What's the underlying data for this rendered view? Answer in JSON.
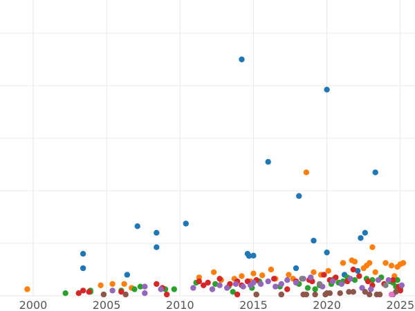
{
  "chart_data": {
    "type": "scatter",
    "title": "",
    "xlabel": "",
    "ylabel": "",
    "xlim": [
      1996.8,
      2026.0
    ],
    "ylim": [
      0,
      100
    ],
    "x_ticks": [
      2000,
      2005,
      2010,
      2015,
      2020,
      2025
    ],
    "x_tick_labels": [
      "2000",
      "2005",
      "2010",
      "2015",
      "2020",
      "2025"
    ],
    "y_gridlines": [
      0,
      20,
      40,
      60,
      80,
      100
    ],
    "grid": true,
    "legend": "none",
    "series": [
      {
        "color": "#1f77b4",
        "points": [
          [
            2003.4,
            16.0
          ],
          [
            2003.4,
            10.5
          ],
          [
            2006.4,
            8.0
          ],
          [
            2007.1,
            26.5
          ],
          [
            2008.4,
            24.0
          ],
          [
            2008.4,
            18.5
          ],
          [
            2010.4,
            27.5
          ],
          [
            2014.2,
            90.0
          ],
          [
            2014.6,
            16.0
          ],
          [
            2014.7,
            15.2
          ],
          [
            2015.0,
            15.3
          ],
          [
            2016.0,
            51.0
          ],
          [
            2017.9,
            10.5
          ],
          [
            2018.1,
            38.0
          ],
          [
            2019.1,
            21.0
          ],
          [
            2020.0,
            78.5
          ],
          [
            2020.0,
            16.5
          ],
          [
            2022.3,
            22.0
          ],
          [
            2022.6,
            24.0
          ],
          [
            2023.3,
            47.0
          ],
          [
            2022.1,
            9.5
          ],
          [
            2021.2,
            8.0
          ]
        ]
      },
      {
        "color": "#ff7f0e",
        "points": [
          [
            1999.6,
            2.5
          ],
          [
            2004.6,
            4.0
          ],
          [
            2005.4,
            4.5
          ],
          [
            2006.2,
            4.5
          ],
          [
            2006.7,
            3.0
          ],
          [
            2011.3,
            7.0
          ],
          [
            2012.3,
            9.0
          ],
          [
            2012.8,
            6.0
          ],
          [
            2013.7,
            6.5
          ],
          [
            2014.2,
            7.5
          ],
          [
            2014.8,
            5.5
          ],
          [
            2015.0,
            8.5
          ],
          [
            2015.6,
            7.8
          ],
          [
            2016.2,
            10.0
          ],
          [
            2016.5,
            6.5
          ],
          [
            2017.4,
            8.0
          ],
          [
            2017.7,
            6.5
          ],
          [
            2018.6,
            47.0
          ],
          [
            2018.9,
            7.0
          ],
          [
            2019.1,
            9.0
          ],
          [
            2019.6,
            8.0
          ],
          [
            2020.1,
            9.5
          ],
          [
            2020.5,
            6.5
          ],
          [
            2021.1,
            12.5
          ],
          [
            2021.7,
            13.5
          ],
          [
            2021.9,
            13.0
          ],
          [
            2022.5,
            10.5
          ],
          [
            2022.7,
            11.5
          ],
          [
            2022.9,
            12.5
          ],
          [
            2023.1,
            18.5
          ],
          [
            2023.3,
            9.0
          ],
          [
            2024.0,
            12.5
          ],
          [
            2024.4,
            11.5
          ],
          [
            2024.8,
            11.0
          ],
          [
            2025.0,
            12.0
          ],
          [
            2025.2,
            12.5
          ],
          [
            2023.7,
            7.0
          ],
          [
            2024.6,
            7.5
          ],
          [
            2015.2,
            0.5
          ]
        ]
      },
      {
        "color": "#2ca02c",
        "points": [
          [
            2002.2,
            1.0
          ],
          [
            2003.9,
            1.5
          ],
          [
            2003.9,
            2.0
          ],
          [
            2006.0,
            2.0
          ],
          [
            2006.9,
            2.5
          ],
          [
            2007.3,
            3.5
          ],
          [
            2009.0,
            2.5
          ],
          [
            2009.6,
            2.5
          ],
          [
            2011.1,
            5.0
          ],
          [
            2012.4,
            4.5
          ],
          [
            2013.3,
            3.5
          ],
          [
            2013.6,
            1.5
          ],
          [
            2014.9,
            3.0
          ],
          [
            2015.4,
            5.5
          ],
          [
            2016.8,
            3.5
          ],
          [
            2018.1,
            4.5
          ],
          [
            2018.7,
            3.0
          ],
          [
            2019.2,
            2.5
          ],
          [
            2019.5,
            4.0
          ],
          [
            2020.3,
            4.5
          ],
          [
            2020.4,
            6.0
          ],
          [
            2020.8,
            5.0
          ],
          [
            2021.1,
            5.5
          ],
          [
            2021.4,
            7.0
          ],
          [
            2021.9,
            6.0
          ],
          [
            2022.7,
            6.5
          ],
          [
            2023.1,
            6.0
          ],
          [
            2023.7,
            7.0
          ],
          [
            2024.3,
            5.5
          ],
          [
            2024.7,
            3.5
          ],
          [
            2025.0,
            2.5
          ],
          [
            2024.8,
            6.0
          ],
          [
            2024.5,
            5.0
          ]
        ]
      },
      {
        "color": "#d62728",
        "points": [
          [
            2003.1,
            1.0
          ],
          [
            2003.4,
            2.0
          ],
          [
            2003.8,
            1.5
          ],
          [
            2006.0,
            1.5
          ],
          [
            2008.4,
            4.5
          ],
          [
            2008.8,
            3.0
          ],
          [
            2009.1,
            0.5
          ],
          [
            2011.3,
            5.5
          ],
          [
            2011.6,
            4.0
          ],
          [
            2011.9,
            5.0
          ],
          [
            2012.7,
            6.5
          ],
          [
            2013.4,
            4.5
          ],
          [
            2013.9,
            5.5
          ],
          [
            2014.2,
            4.0
          ],
          [
            2014.6,
            5.5
          ],
          [
            2015.2,
            6.0
          ],
          [
            2016.4,
            6.5
          ],
          [
            2017.3,
            2.5
          ],
          [
            2017.9,
            5.5
          ],
          [
            2018.8,
            6.0
          ],
          [
            2019.0,
            5.5
          ],
          [
            2019.8,
            8.0
          ],
          [
            2020.2,
            6.0
          ],
          [
            2020.6,
            7.0
          ],
          [
            2021.4,
            5.5
          ],
          [
            2021.8,
            10.0
          ],
          [
            2022.2,
            7.5
          ],
          [
            2022.8,
            5.5
          ],
          [
            2023.1,
            4.0
          ],
          [
            2023.9,
            4.5
          ],
          [
            2024.5,
            6.0
          ],
          [
            2024.9,
            3.5
          ],
          [
            2025.0,
            2.0
          ],
          [
            2013.9,
            0.5
          ]
        ]
      },
      {
        "color": "#9467bd",
        "points": [
          [
            2005.4,
            2.0
          ],
          [
            2007.6,
            1.0
          ],
          [
            2007.6,
            3.5
          ],
          [
            2008.7,
            2.5
          ],
          [
            2010.9,
            3.0
          ],
          [
            2012.2,
            2.5
          ],
          [
            2012.7,
            4.0
          ],
          [
            2013.2,
            3.0
          ],
          [
            2013.8,
            4.5
          ],
          [
            2014.3,
            3.5
          ],
          [
            2014.8,
            4.0
          ],
          [
            2015.0,
            5.0
          ],
          [
            2015.5,
            4.5
          ],
          [
            2016.0,
            5.5
          ],
          [
            2016.5,
            3.5
          ],
          [
            2016.9,
            4.5
          ],
          [
            2017.3,
            6.0
          ],
          [
            2017.9,
            5.0
          ],
          [
            2018.4,
            6.5
          ],
          [
            2018.9,
            7.0
          ],
          [
            2019.7,
            3.5
          ],
          [
            2020.4,
            5.5
          ],
          [
            2021.0,
            4.5
          ],
          [
            2021.6,
            6.5
          ],
          [
            2022.4,
            3.0
          ],
          [
            2023.0,
            2.5
          ],
          [
            2023.5,
            6.0
          ],
          [
            2024.2,
            6.0
          ],
          [
            2024.5,
            0.5
          ],
          [
            2025.1,
            4.0
          ],
          [
            2016.9,
            0.5
          ]
        ]
      },
      {
        "color": "#8c564b",
        "points": [
          [
            2004.8,
            0.5
          ],
          [
            2006.3,
            0.5
          ],
          [
            2018.4,
            0.5
          ],
          [
            2018.6,
            0.5
          ],
          [
            2019.2,
            0.5
          ],
          [
            2019.9,
            0.5
          ],
          [
            2020.0,
            1.0
          ],
          [
            2020.2,
            1.0
          ],
          [
            2020.9,
            1.0
          ],
          [
            2021.5,
            1.5
          ],
          [
            2021.8,
            1.5
          ],
          [
            2022.6,
            1.5
          ],
          [
            2022.9,
            0.5
          ],
          [
            2023.4,
            0.5
          ],
          [
            2023.6,
            0.5
          ],
          [
            2024.7,
            1.5
          ],
          [
            2015.2,
            0.5
          ],
          [
            2016.9,
            0.5
          ]
        ]
      },
      {
        "color": "#7f7f7f",
        "points": [
          [
            2018.3,
            6.5
          ],
          [
            2019.5,
            4.5
          ],
          [
            2024.0,
            4.0
          ]
        ]
      },
      {
        "color": "#e377c2",
        "points": [
          [
            2024.4,
            0.5
          ]
        ]
      }
    ]
  }
}
